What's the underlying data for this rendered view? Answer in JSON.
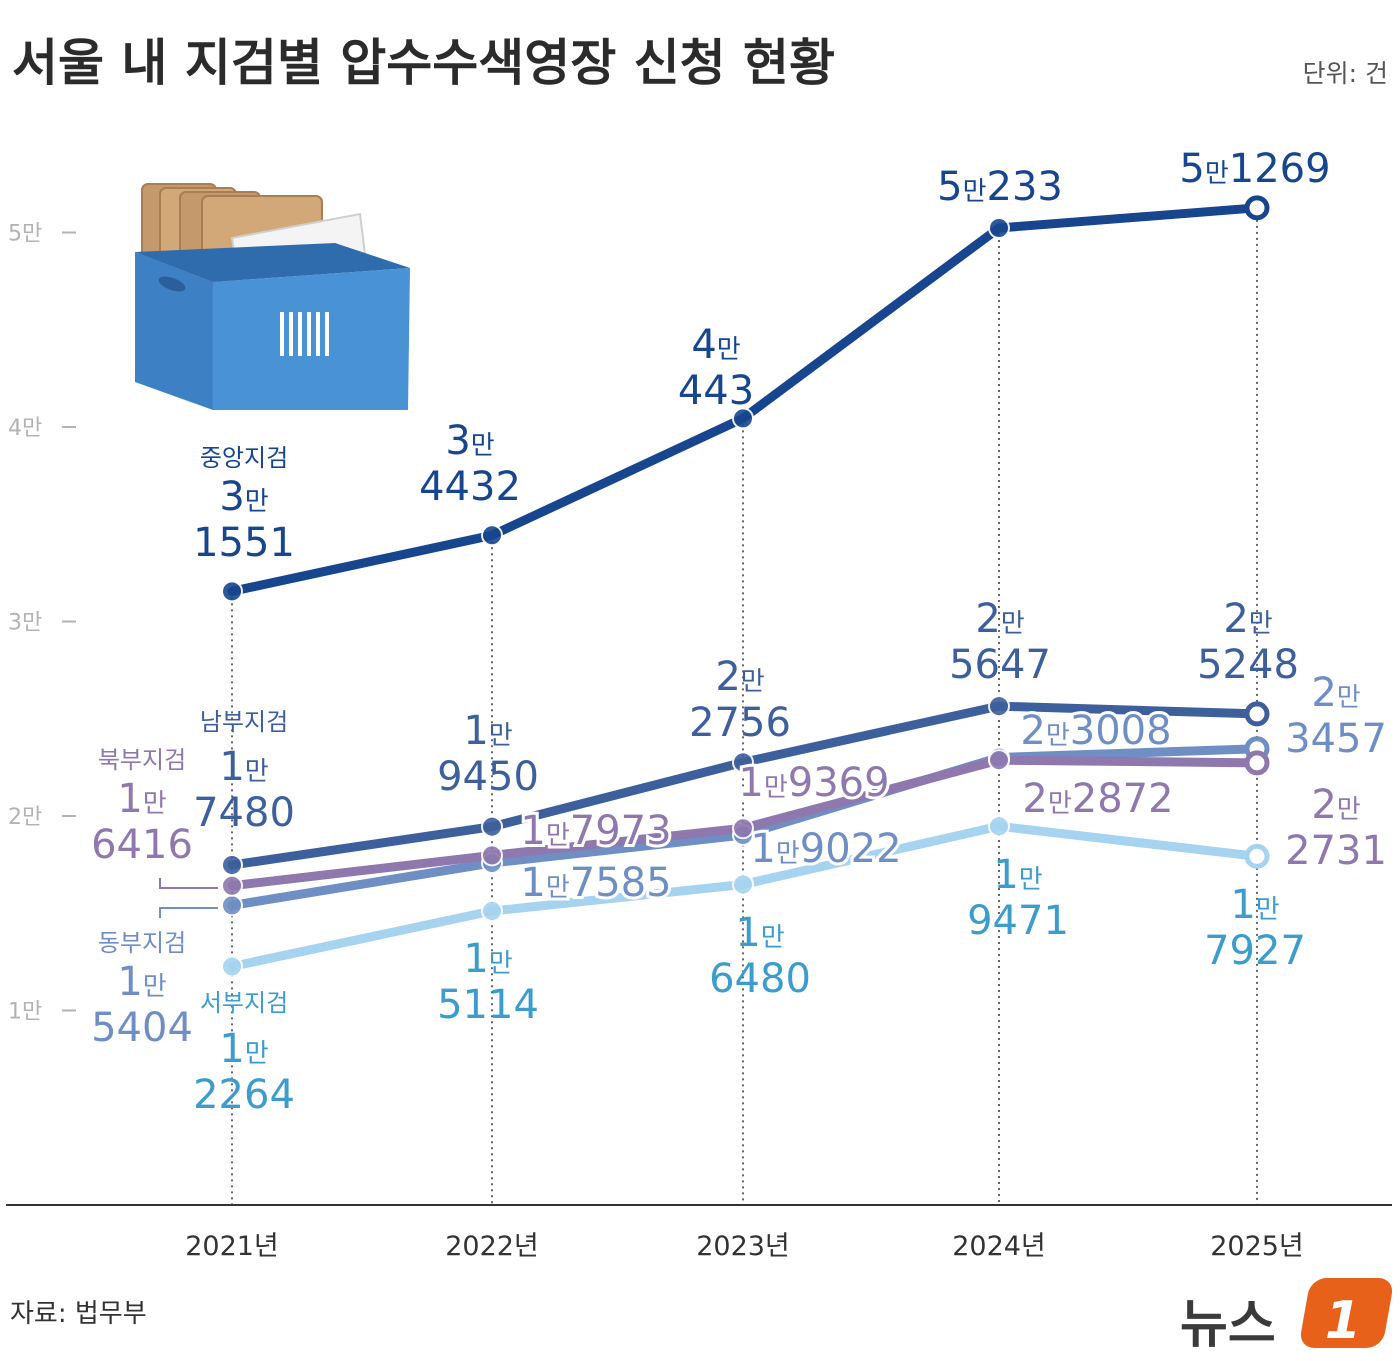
{
  "title": "서울 내 지검별 압수수색영장 신청 현황",
  "unit": "단위: 건",
  "source": "자료: 법무부",
  "brand": {
    "name": "뉴스",
    "badge": "1",
    "badge_color": "#e8611a"
  },
  "chart_data": {
    "type": "line",
    "categories": [
      "2021년",
      "2022년",
      "2023년",
      "2024년",
      "2025년"
    ],
    "x": [
      2021,
      2022,
      2023,
      2024,
      2025
    ],
    "ylim": [
      0,
      55000
    ],
    "yticks": [
      {
        "value": 10000,
        "label": "1만"
      },
      {
        "value": 20000,
        "label": "2만"
      },
      {
        "value": 30000,
        "label": "3만"
      },
      {
        "value": 40000,
        "label": "4만"
      },
      {
        "value": 50000,
        "label": "5만"
      }
    ],
    "grid": false,
    "series": [
      {
        "name": "중앙지검",
        "color": "#17468e",
        "values": [
          31551,
          34432,
          40443,
          50233,
          51269
        ],
        "labels": [
          [
            "3만",
            "1551"
          ],
          [
            "3만",
            "4432"
          ],
          [
            "4만",
            "443"
          ],
          [
            "5만",
            "233"
          ],
          [
            "5만",
            "1269"
          ]
        ]
      },
      {
        "name": "남부지검",
        "color": "#3d5f9c",
        "values": [
          17480,
          19450,
          22756,
          25647,
          25248
        ],
        "labels": [
          [
            "1만",
            "7480"
          ],
          [
            "1만",
            "9450"
          ],
          [
            "2만",
            "2756"
          ],
          [
            "2만",
            "5647"
          ],
          [
            "2만",
            "5248"
          ]
        ]
      },
      {
        "name": "북부지검",
        "color": "#8f78ae",
        "values": [
          16416,
          17973,
          19369,
          22872,
          22731
        ],
        "labels": [
          [
            "1만",
            "6416"
          ],
          [
            "1만",
            "7973"
          ],
          [
            "1만",
            "9369"
          ],
          [
            "2만",
            "2872"
          ],
          [
            "2만",
            "2731"
          ]
        ]
      },
      {
        "name": "동부지검",
        "color": "#6f8fc4",
        "values": [
          15404,
          17585,
          19022,
          23008,
          23457
        ],
        "labels": [
          [
            "1만",
            "5404"
          ],
          [
            "1만",
            "7585"
          ],
          [
            "1만",
            "9022"
          ],
          [
            "2만",
            "3008"
          ],
          [
            "2만",
            "3457"
          ]
        ]
      },
      {
        "name": "서부지검",
        "color": "#a6d3f0",
        "label_color": "#3c9ccc",
        "values": [
          12264,
          15114,
          16480,
          19471,
          17927
        ],
        "labels": [
          [
            "1만",
            "2264"
          ],
          [
            "1만",
            "5114"
          ],
          [
            "1만",
            "6480"
          ],
          [
            "1만",
            "9471"
          ],
          [
            "1만",
            "7927"
          ]
        ]
      }
    ]
  }
}
